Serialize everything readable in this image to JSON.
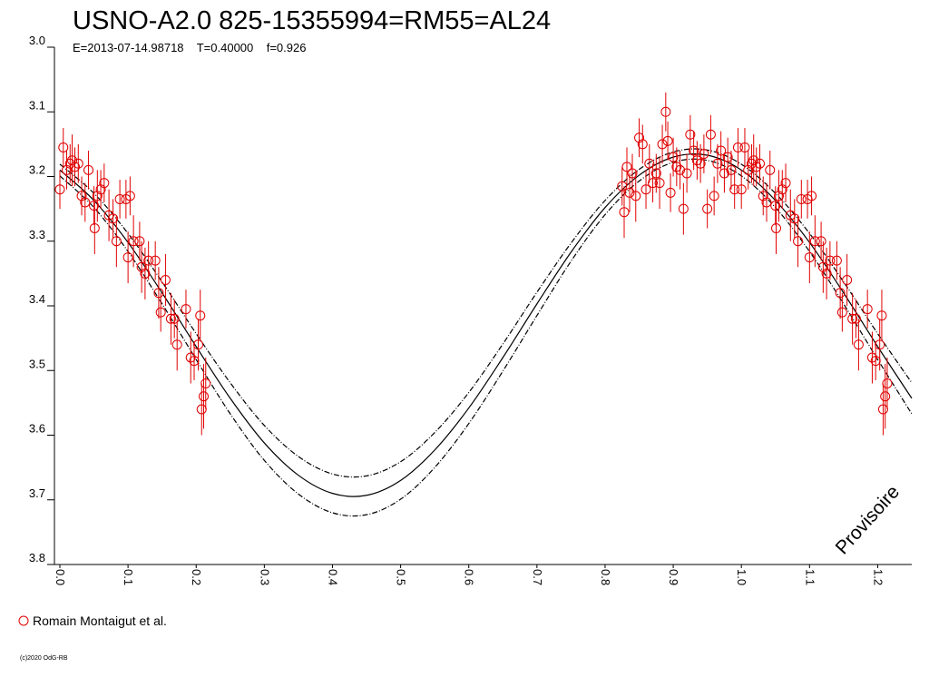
{
  "chart_data": {
    "type": "scatter",
    "title": "USNO-A2.0 825-15355994=RM55=AL24",
    "subtitle": "E=2013-07-14.98718    T=0.40000    f=0.926",
    "annotation": "Provisoire",
    "footer": "(c)2020 OdG-RB",
    "xlim": [
      0,
      1.25
    ],
    "ylim": [
      3.8,
      3.0
    ],
    "xticks": [
      {
        "value": 0,
        "label": "0.0"
      },
      0.1,
      0.2,
      0.3,
      0.4,
      0.5,
      0.6,
      0.7,
      0.8,
      0.9,
      {
        "value": 1,
        "label": "1.0"
      },
      1.1,
      1.2
    ],
    "yticks": [
      {
        "value": 3,
        "label": "3.0"
      },
      3.1,
      3.2,
      3.3,
      3.4,
      3.5,
      3.6,
      3.7,
      3.8
    ],
    "series": [
      {
        "name": "Romain Montaigut et al.",
        "color": "#e00000",
        "x": [
          0.0,
          0.005,
          0.01,
          0.015,
          0.018,
          0.022,
          0.027,
          0.032,
          0.037,
          0.042,
          0.05,
          0.051,
          0.055,
          0.06,
          0.065,
          0.072,
          0.078,
          0.083,
          0.088,
          0.097,
          0.1,
          0.103,
          0.108,
          0.117,
          0.12,
          0.125,
          0.13,
          0.14,
          0.145,
          0.148,
          0.155,
          0.163,
          0.168,
          0.172,
          0.185,
          0.192,
          0.197,
          0.203,
          0.206,
          0.208,
          0.211,
          0.214,
          0.825,
          0.828,
          0.832,
          0.836,
          0.84,
          0.845,
          0.85,
          0.855,
          0.86,
          0.865,
          0.87,
          0.875,
          0.88,
          0.884,
          0.889,
          0.892,
          0.896,
          0.9,
          0.905,
          0.91,
          0.915,
          0.92,
          0.925,
          0.93,
          0.935,
          0.94,
          0.945,
          0.95,
          0.955,
          0.96,
          0.965,
          0.97,
          0.975,
          0.98,
          0.985,
          0.99,
          0.995,
          1.0,
          1.005,
          1.01,
          1.015,
          1.018,
          1.022,
          1.027,
          1.032,
          1.037,
          1.042,
          1.05,
          1.051,
          1.055,
          1.06,
          1.065,
          1.072,
          1.078,
          1.083,
          1.088,
          1.097,
          1.1,
          1.103,
          1.108,
          1.117,
          1.12,
          1.125,
          1.13,
          1.14,
          1.145,
          1.148,
          1.155,
          1.163,
          1.168,
          1.172,
          1.185,
          1.192,
          1.197,
          1.203,
          1.206,
          1.208,
          1.211,
          1.214
        ],
        "values": [
          3.22,
          3.155,
          3.19,
          3.18,
          3.175,
          3.185,
          3.18,
          3.23,
          3.24,
          3.19,
          3.245,
          3.28,
          3.23,
          3.22,
          3.21,
          3.26,
          3.265,
          3.3,
          3.235,
          3.235,
          3.325,
          3.23,
          3.3,
          3.3,
          3.34,
          3.35,
          3.33,
          3.33,
          3.38,
          3.41,
          3.36,
          3.42,
          3.42,
          3.46,
          3.405,
          3.48,
          3.485,
          3.46,
          3.415,
          3.56,
          3.54,
          3.52,
          3.215,
          3.255,
          3.185,
          3.225,
          3.195,
          3.23,
          3.14,
          3.15,
          3.22,
          3.18,
          3.21,
          3.195,
          3.21,
          3.15,
          3.1,
          3.145,
          3.225,
          3.17,
          3.185,
          3.19,
          3.25,
          3.195,
          3.135,
          3.16,
          3.175,
          3.18,
          3.165,
          3.25,
          3.135,
          3.23,
          3.18,
          3.16,
          3.195,
          3.17,
          3.19,
          3.22,
          3.155,
          3.22,
          3.155,
          3.19,
          3.18,
          3.175,
          3.185,
          3.18,
          3.23,
          3.24,
          3.19,
          3.245,
          3.28,
          3.23,
          3.22,
          3.21,
          3.26,
          3.265,
          3.3,
          3.235,
          3.235,
          3.325,
          3.23,
          3.3,
          3.3,
          3.34,
          3.35,
          3.33,
          3.33,
          3.38,
          3.41,
          3.36,
          3.42,
          3.42,
          3.46,
          3.405,
          3.48,
          3.485,
          3.46,
          3.415,
          3.56,
          3.54,
          3.52
        ],
        "errors": [
          0.03,
          0.03,
          0.03,
          0.03,
          0.04,
          0.03,
          0.03,
          0.03,
          0.03,
          0.03,
          0.03,
          0.04,
          0.04,
          0.03,
          0.03,
          0.04,
          0.03,
          0.04,
          0.03,
          0.03,
          0.04,
          0.03,
          0.04,
          0.03,
          0.04,
          0.04,
          0.03,
          0.03,
          0.04,
          0.03,
          0.04,
          0.04,
          0.03,
          0.04,
          0.03,
          0.04,
          0.03,
          0.04,
          0.04,
          0.04,
          0.05,
          0.04,
          0.03,
          0.04,
          0.03,
          0.03,
          0.03,
          0.04,
          0.03,
          0.03,
          0.03,
          0.03,
          0.03,
          0.03,
          0.04,
          0.03,
          0.03,
          0.03,
          0.03,
          0.03,
          0.03,
          0.03,
          0.04,
          0.03,
          0.03,
          0.03,
          0.03,
          0.03,
          0.03,
          0.03,
          0.03,
          0.03,
          0.03,
          0.03,
          0.03,
          0.03,
          0.03,
          0.03,
          0.03,
          0.03,
          0.03,
          0.03,
          0.03,
          0.04,
          0.03,
          0.03,
          0.03,
          0.03,
          0.03,
          0.03,
          0.04,
          0.04,
          0.03,
          0.03,
          0.04,
          0.03,
          0.04,
          0.03,
          0.03,
          0.04,
          0.03,
          0.04,
          0.03,
          0.04,
          0.04,
          0.03,
          0.03,
          0.04,
          0.03,
          0.04,
          0.04,
          0.03,
          0.04,
          0.03,
          0.04,
          0.03,
          0.04,
          0.04,
          0.04,
          0.05,
          0.04
        ]
      }
    ],
    "curve_x": [
      0,
      0.05,
      0.1,
      0.15,
      0.2,
      0.25,
      0.3,
      0.35,
      0.4,
      0.45,
      0.5,
      0.55,
      0.6,
      0.65,
      0.7,
      0.75,
      0.8,
      0.85,
      0.9,
      0.95,
      1.0,
      1.05,
      1.1,
      1.15,
      1.2,
      1.25
    ],
    "curves": [
      {
        "style": "solid",
        "color": "#000000",
        "values": [
          3.19,
          3.237,
          3.302,
          3.38,
          3.463,
          3.543,
          3.612,
          3.662,
          3.69,
          3.693,
          3.67,
          3.623,
          3.558,
          3.48,
          3.397,
          3.317,
          3.248,
          3.198,
          3.17,
          3.167,
          3.19,
          3.237,
          3.302,
          3.38,
          3.463,
          3.543
        ]
      },
      {
        "style": "dashed",
        "color": "#000000",
        "values": [
          3.181,
          3.226,
          3.288,
          3.363,
          3.443,
          3.519,
          3.585,
          3.633,
          3.66,
          3.663,
          3.641,
          3.596,
          3.534,
          3.459,
          3.379,
          3.303,
          3.237,
          3.189,
          3.162,
          3.159,
          3.181,
          3.226,
          3.288,
          3.363,
          3.443,
          3.519
        ]
      },
      {
        "style": "dashed",
        "color": "#000000",
        "values": [
          3.199,
          3.248,
          3.316,
          3.397,
          3.483,
          3.567,
          3.639,
          3.691,
          3.72,
          3.723,
          3.699,
          3.65,
          3.582,
          3.501,
          3.415,
          3.331,
          3.259,
          3.207,
          3.178,
          3.175,
          3.199,
          3.248,
          3.316,
          3.397,
          3.483,
          3.567
        ]
      }
    ]
  }
}
